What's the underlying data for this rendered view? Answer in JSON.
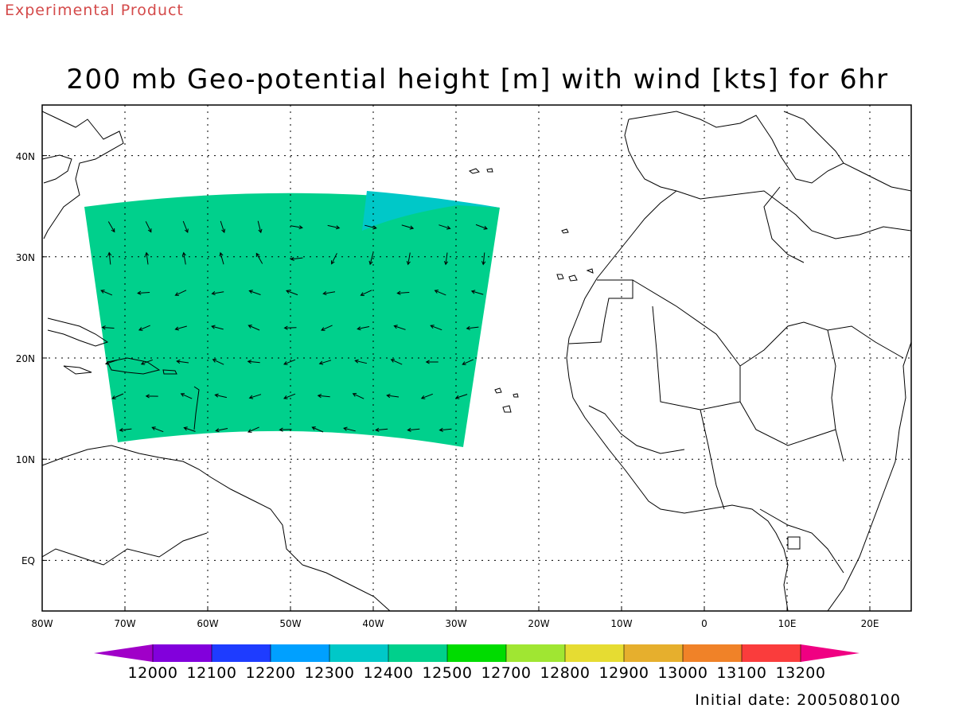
{
  "header": {
    "product_note": "Experimental Product",
    "title": "200 mb Geo-potential height [m] with wind [kts] for 6hr",
    "initial_date": "Initial date: 2005080100"
  },
  "map": {
    "extent": {
      "lon": [
        -80,
        25
      ],
      "lat": [
        -5,
        45
      ]
    },
    "lon_ticks": [
      "80W",
      "70W",
      "60W",
      "50W",
      "40W",
      "30W",
      "20W",
      "10W",
      "0",
      "10E",
      "20E"
    ],
    "lat_ticks": [
      "40N",
      "30N",
      "20N",
      "10N",
      "EQ"
    ],
    "field_color": "#00d08c",
    "high_region_color": "#00c8c8",
    "outline_color": "#000000"
  },
  "colorbar": {
    "colors": [
      "#a000c8",
      "#8200dc",
      "#1e3cff",
      "#00a0ff",
      "#00c8c8",
      "#00d08c",
      "#00dc00",
      "#a0e632",
      "#e6dc32",
      "#e6af2d",
      "#f08228",
      "#fa3c3c",
      "#f00082"
    ],
    "labels": [
      "12000",
      "12100",
      "12200",
      "12300",
      "12400",
      "12500",
      "12700",
      "12800",
      "12900",
      "13000",
      "13100",
      "13200"
    ]
  }
}
